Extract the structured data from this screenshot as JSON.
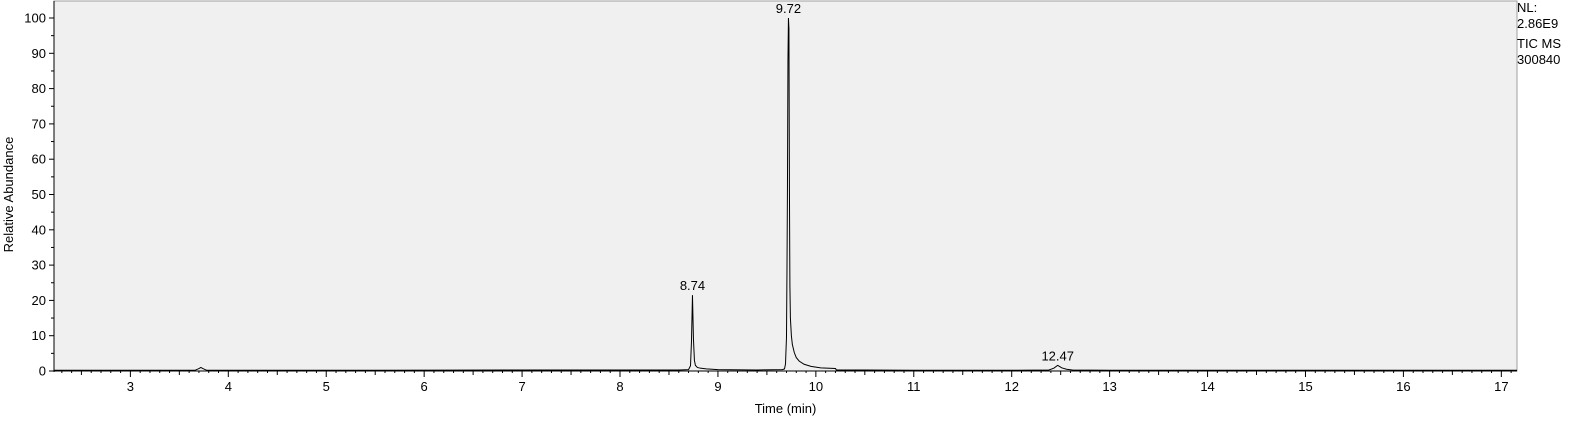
{
  "chart_data": {
    "type": "line",
    "title": "",
    "xlabel": "Time (min)",
    "ylabel": "Relative Abundance",
    "xlim": [
      2.22,
      17.16
    ],
    "ylim": [
      0,
      100
    ],
    "x_ticks": [
      3,
      4,
      5,
      6,
      7,
      8,
      9,
      10,
      11,
      12,
      13,
      14,
      15,
      16,
      17
    ],
    "y_ticks": [
      0,
      10,
      20,
      30,
      40,
      50,
      60,
      70,
      80,
      90,
      100
    ],
    "grid": false,
    "background": "#f0f0f0",
    "line_color": "#000000",
    "peak_labels": [
      {
        "x": 8.74,
        "y": 21.5,
        "label": "8.74"
      },
      {
        "x": 9.72,
        "y": 100,
        "label": "9.72"
      },
      {
        "x": 12.47,
        "y": 1.6,
        "label": "12.47"
      }
    ],
    "series": [
      {
        "x": [
          2.22,
          3.0,
          3.66,
          3.7,
          3.72,
          3.74,
          3.78,
          5.0,
          7.0,
          8.4,
          8.6,
          8.7,
          8.72,
          8.73,
          8.74,
          8.75,
          8.76,
          8.77,
          8.79,
          8.82,
          8.88,
          9.0,
          9.4,
          9.66,
          9.68,
          9.69,
          9.7,
          9.705,
          9.71,
          9.715,
          9.72,
          9.725,
          9.73,
          9.735,
          9.74,
          9.75,
          9.76,
          9.78,
          9.8,
          9.83,
          9.88,
          9.95,
          10.05,
          10.2,
          10.21,
          10.5,
          11.0,
          12.0,
          12.38,
          12.43,
          12.47,
          12.51,
          12.56,
          12.62,
          13.0,
          15.0,
          17.16
        ],
        "y": [
          0.2,
          0.2,
          0.2,
          0.7,
          1.0,
          0.7,
          0.2,
          0.2,
          0.3,
          0.3,
          0.3,
          0.4,
          1.5,
          8.5,
          21.5,
          9.0,
          3.0,
          1.6,
          1.0,
          0.8,
          0.6,
          0.4,
          0.3,
          0.4,
          0.6,
          2.0,
          9.5,
          28.0,
          52.0,
          88.0,
          100,
          97.0,
          52.0,
          24.0,
          15.0,
          10.0,
          7.5,
          5.2,
          3.8,
          2.8,
          1.9,
          1.3,
          0.9,
          0.7,
          0.3,
          0.3,
          0.2,
          0.2,
          0.3,
          0.8,
          1.6,
          0.9,
          0.5,
          0.3,
          0.2,
          0.2,
          0.2
        ]
      }
    ]
  },
  "info": {
    "line1": "NL:",
    "line2": "2.86E9",
    "line3": "TIC  MS",
    "line4": "300840"
  }
}
